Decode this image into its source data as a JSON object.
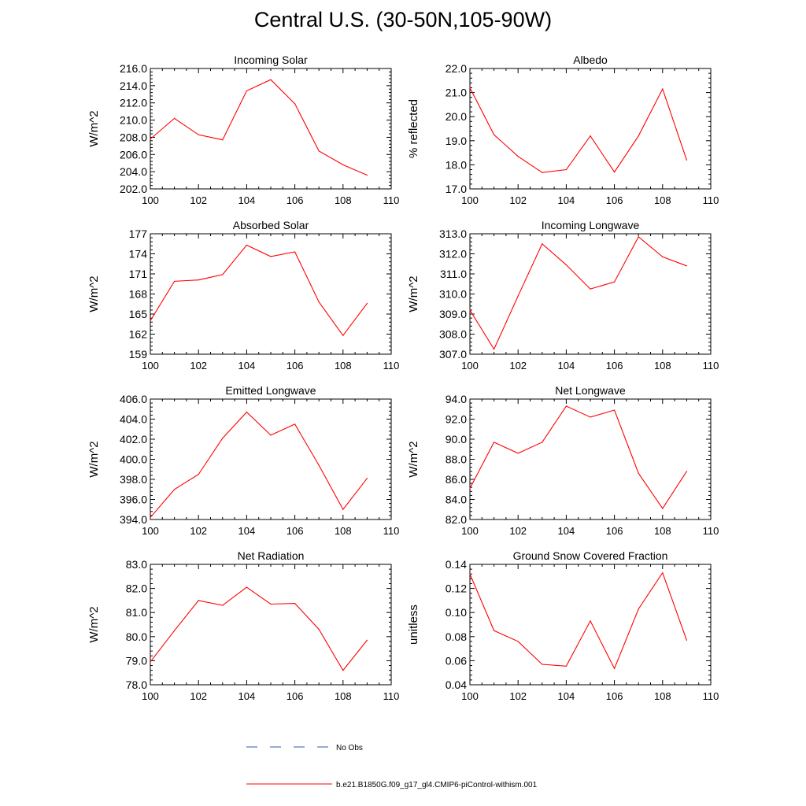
{
  "title": "Central U.S. (30-50N,105-90W)",
  "chart_data": [
    {
      "type": "line",
      "title": "Incoming Solar",
      "ylabel": "W/m^2",
      "xlim": [
        100,
        110
      ],
      "ylim": [
        202,
        216
      ],
      "xticks": [
        "100",
        "102",
        "104",
        "106",
        "108",
        "110"
      ],
      "yticks": [
        "202.0",
        "204.0",
        "206.0",
        "208.0",
        "210.0",
        "212.0",
        "214.0",
        "216.0"
      ],
      "x": [
        100,
        101,
        102,
        103,
        104,
        105,
        106,
        107,
        108,
        109
      ],
      "series": [
        {
          "name": "b.e21.B1850G.f09_g17_gl4.CMIP6-piControl-withism.001",
          "color": "#ff0000",
          "values": [
            207.8,
            210.2,
            208.3,
            207.7,
            213.4,
            214.7,
            211.9,
            206.4,
            204.8,
            203.6
          ]
        }
      ]
    },
    {
      "type": "line",
      "title": "Albedo",
      "ylabel": "% reflected",
      "xlim": [
        100,
        110
      ],
      "ylim": [
        17,
        22
      ],
      "xticks": [
        "100",
        "102",
        "104",
        "106",
        "108",
        "110"
      ],
      "yticks": [
        "17.0",
        "18.0",
        "19.0",
        "20.0",
        "21.0",
        "22.0"
      ],
      "x": [
        100,
        101,
        102,
        103,
        104,
        105,
        106,
        107,
        108,
        109
      ],
      "series": [
        {
          "name": "b.e21.B1850G.f09_g17_gl4.CMIP6-piControl-withism.001",
          "color": "#ff0000",
          "values": [
            21.2,
            19.25,
            18.35,
            17.68,
            17.8,
            19.2,
            17.7,
            19.2,
            21.15,
            18.2
          ]
        }
      ]
    },
    {
      "type": "line",
      "title": "Absorbed Solar",
      "ylabel": "W/m^2",
      "xlim": [
        100,
        110
      ],
      "ylim": [
        159,
        177
      ],
      "xticks": [
        "100",
        "102",
        "104",
        "106",
        "108",
        "110"
      ],
      "yticks": [
        "159",
        "162",
        "165",
        "168",
        "171",
        "174",
        "177"
      ],
      "x": [
        100,
        101,
        102,
        103,
        104,
        105,
        106,
        107,
        108,
        109
      ],
      "series": [
        {
          "name": "b.e21.B1850G.f09_g17_gl4.CMIP6-piControl-withism.001",
          "color": "#ff0000",
          "values": [
            164.0,
            169.9,
            170.1,
            170.9,
            175.3,
            173.6,
            174.3,
            166.8,
            161.8,
            166.6
          ]
        }
      ]
    },
    {
      "type": "line",
      "title": "Incoming Longwave",
      "ylabel": "W/m^2",
      "xlim": [
        100,
        110
      ],
      "ylim": [
        307,
        313
      ],
      "xticks": [
        "100",
        "102",
        "104",
        "106",
        "108",
        "110"
      ],
      "yticks": [
        "307.0",
        "308.0",
        "309.0",
        "310.0",
        "311.0",
        "312.0",
        "313.0"
      ],
      "x": [
        100,
        101,
        102,
        103,
        104,
        105,
        106,
        107,
        108,
        109
      ],
      "series": [
        {
          "name": "b.e21.B1850G.f09_g17_gl4.CMIP6-piControl-withism.001",
          "color": "#ff0000",
          "values": [
            309.2,
            307.25,
            309.9,
            312.5,
            311.45,
            310.25,
            310.6,
            312.85,
            311.85,
            311.4
          ]
        }
      ]
    },
    {
      "type": "line",
      "title": "Emitted Longwave",
      "ylabel": "W/m^2",
      "xlim": [
        100,
        110
      ],
      "ylim": [
        394,
        406
      ],
      "xticks": [
        "100",
        "102",
        "104",
        "106",
        "108",
        "110"
      ],
      "yticks": [
        "394.0",
        "396.0",
        "398.0",
        "400.0",
        "402.0",
        "404.0",
        "406.0"
      ],
      "x": [
        100,
        101,
        102,
        103,
        104,
        105,
        106,
        107,
        108,
        109
      ],
      "series": [
        {
          "name": "b.e21.B1850G.f09_g17_gl4.CMIP6-piControl-withism.001",
          "color": "#ff0000",
          "values": [
            394.2,
            397.0,
            398.5,
            402.1,
            404.7,
            402.4,
            403.5,
            399.4,
            395.0,
            398.1
          ]
        }
      ]
    },
    {
      "type": "line",
      "title": "Net Longwave",
      "ylabel": "W/m^2",
      "xlim": [
        100,
        110
      ],
      "ylim": [
        82,
        94
      ],
      "xticks": [
        "100",
        "102",
        "104",
        "106",
        "108",
        "110"
      ],
      "yticks": [
        "82.0",
        "84.0",
        "86.0",
        "88.0",
        "90.0",
        "92.0",
        "94.0"
      ],
      "x": [
        100,
        101,
        102,
        103,
        104,
        105,
        106,
        107,
        108,
        109
      ],
      "series": [
        {
          "name": "b.e21.B1850G.f09_g17_gl4.CMIP6-piControl-withism.001",
          "color": "#ff0000",
          "values": [
            85.1,
            89.7,
            88.6,
            89.7,
            93.3,
            92.2,
            92.9,
            86.6,
            83.1,
            86.8
          ]
        }
      ]
    },
    {
      "type": "line",
      "title": "Net Radiation",
      "ylabel": "W/m^2",
      "xlim": [
        100,
        110
      ],
      "ylim": [
        78,
        83
      ],
      "xticks": [
        "100",
        "102",
        "104",
        "106",
        "108",
        "110"
      ],
      "yticks": [
        "78.0",
        "79.0",
        "80.0",
        "81.0",
        "82.0",
        "83.0"
      ],
      "x": [
        100,
        101,
        102,
        103,
        104,
        105,
        106,
        107,
        108,
        109
      ],
      "series": [
        {
          "name": "b.e21.B1850G.f09_g17_gl4.CMIP6-piControl-withism.001",
          "color": "#ff0000",
          "values": [
            78.95,
            80.25,
            81.5,
            81.3,
            82.05,
            81.35,
            81.38,
            80.3,
            78.6,
            79.85
          ]
        }
      ]
    },
    {
      "type": "line",
      "title": "Ground Snow Covered Fraction",
      "ylabel": "unitless",
      "xlim": [
        100,
        110
      ],
      "ylim": [
        0.04,
        0.14
      ],
      "xticks": [
        "100",
        "102",
        "104",
        "106",
        "108",
        "110"
      ],
      "yticks": [
        "0.04",
        "0.06",
        "0.08",
        "0.10",
        "0.12",
        "0.14"
      ],
      "x": [
        100,
        101,
        102,
        103,
        104,
        105,
        106,
        107,
        108,
        109
      ],
      "series": [
        {
          "name": "b.e21.B1850G.f09_g17_gl4.CMIP6-piControl-withism.001",
          "color": "#ff0000",
          "values": [
            0.132,
            0.085,
            0.076,
            0.057,
            0.0555,
            0.093,
            0.0535,
            0.103,
            0.133,
            0.077
          ]
        }
      ]
    }
  ],
  "legend": {
    "items": [
      {
        "label": "No Obs",
        "color": "#3355aa",
        "style": "dashed"
      },
      {
        "label": "b.e21.B1850G.f09_g17_gl4.CMIP6-piControl-withism.001",
        "color": "#ff0000",
        "style": "solid"
      }
    ]
  }
}
